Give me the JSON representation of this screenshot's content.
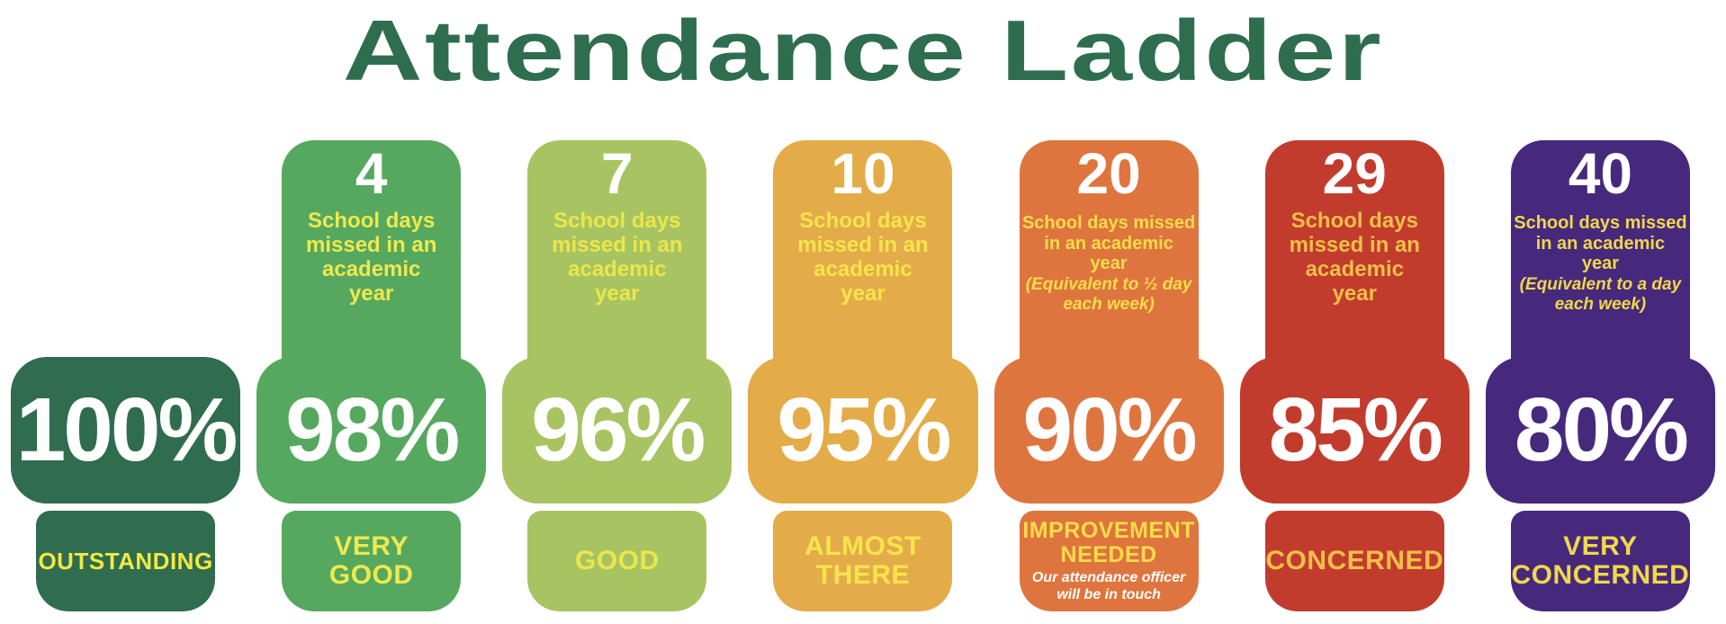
{
  "title": {
    "text": "Attendance Ladder",
    "color": "#2E6E4E"
  },
  "background_color": "#FFFFFF",
  "columns": [
    {
      "name": "Outstanding",
      "color": "#306C4E",
      "accent_color": "#F1E943",
      "percent": "100%",
      "label": "OUTSTANDING"
    },
    {
      "name": "Very Good",
      "color": "#56A85F",
      "accent_color": "#EFE94E",
      "percent": "98%",
      "days_number": "4",
      "days_text": "School days\nmissed in an\nacademic\nyear",
      "label": "VERY\nGOOD"
    },
    {
      "name": "Good",
      "color": "#A8C462",
      "accent_color": "#EBE74B",
      "percent": "96%",
      "days_number": "7",
      "days_text": "School days\nmissed in an\nacademic\nyear",
      "label": "GOOD"
    },
    {
      "name": "Almost There",
      "color": "#E3AC49",
      "accent_color": "#F7E44C",
      "percent": "95%",
      "days_number": "10",
      "days_text": "School days\nmissed in an\nacademic\nyear",
      "label": "ALMOST\nTHERE"
    },
    {
      "name": "Improvement Needed",
      "color": "#DF753E",
      "accent_color": "#F6DC4A",
      "note_color": "#FFFFFF",
      "percent": "90%",
      "days_number": "20",
      "days_text": "School days missed\nin an academic\nyear",
      "days_note": "(Equivalent to ½ day\neach week)",
      "label": "IMPROVEMENT\nNEEDED",
      "label_note": "Our attendance officer\nwill be in touch"
    },
    {
      "name": "Concerned",
      "color": "#C23C2D",
      "accent_color": "#EFBF49",
      "percent": "85%",
      "days_number": "29",
      "days_text": "School days\nmissed in an\nacademic\nyear",
      "label": "CONCERNED"
    },
    {
      "name": "Very Concerned",
      "color": "#46297C",
      "accent_color": "#F0D84A",
      "percent": "80%",
      "days_number": "40",
      "days_text": "School days missed\nin an academic\nyear",
      "days_note": "(Equivalent to a day\neach week)",
      "label": "VERY\nCONCERNED"
    }
  ]
}
